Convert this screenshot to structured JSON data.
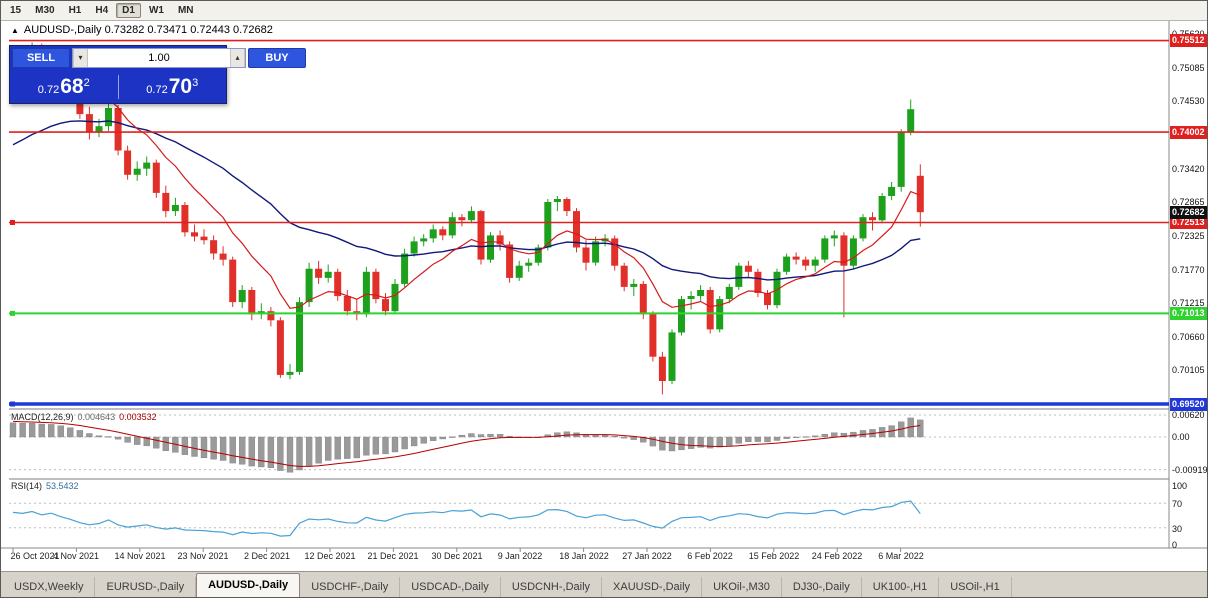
{
  "toolbar": {
    "periods": [
      {
        "label": "15"
      },
      {
        "label": "M30"
      },
      {
        "label": "H1"
      },
      {
        "label": "H4"
      },
      {
        "label": "D1",
        "active": true
      },
      {
        "label": "W1"
      },
      {
        "label": "MN"
      }
    ]
  },
  "chart_header": {
    "collapse_icon": "▲",
    "title": "AUDUSD-,Daily 0.73282 0.73471 0.72443 0.72682"
  },
  "trade_panel": {
    "sell_label": "SELL",
    "buy_label": "BUY",
    "volume": "1.00",
    "sell_price": {
      "prefix": "0.72",
      "big": "68",
      "sup": "2"
    },
    "buy_price": {
      "prefix": "0.72",
      "big": "70",
      "sup": "3"
    }
  },
  "chart_data": {
    "type": "candlestick",
    "symbol": "AUDUSD-",
    "timeframe": "Daily",
    "last_bar_ohlc": {
      "open": 0.73282,
      "high": 0.73471,
      "low": 0.72443,
      "close": 0.72682
    },
    "price_range_displayed": {
      "top": 0.7562,
      "bottom": 0.6952
    },
    "y_ticks": [
      "0.75620",
      "0.75085",
      "0.74530",
      "0.73975",
      "0.73420",
      "0.72865",
      "0.72325",
      "0.71770",
      "0.71215",
      "0.70660",
      "0.70105",
      "0.69520"
    ],
    "x_dates": [
      "26 Oct 2021",
      "4 Nov 2021",
      "14 Nov 2021",
      "23 Nov 2021",
      "2 Dec 2021",
      "12 Dec 2021",
      "21 Dec 2021",
      "30 Dec 2021",
      "9 Jan 2022",
      "18 Jan 2022",
      "27 Jan 2022",
      "6 Feb 2022",
      "15 Feb 2022",
      "24 Feb 2022",
      "6 Mar 2022"
    ],
    "colors": {
      "bull": "#1da11d",
      "bear": "#e12f2a"
    },
    "moving_averages": [
      {
        "period": 10,
        "method": "ema",
        "color": "#d61a1a"
      },
      {
        "period": 34,
        "method": "ema",
        "color": "#10197a"
      }
    ],
    "hlines": [
      {
        "price": 0.75512,
        "label": "0.75512",
        "color": "#e01f1f",
        "width": 1.6,
        "handle": false
      },
      {
        "price": 0.74002,
        "label": "0.74002",
        "color": "#e01f1f",
        "width": 1.6,
        "handle": false
      },
      {
        "price": 0.72513,
        "label": "0.72513",
        "color": "#e01f1f",
        "width": 1.6,
        "handle": true
      },
      {
        "price": 0.71013,
        "label": "0.71013",
        "color": "#2fd32f",
        "width": 2,
        "handle": true
      },
      {
        "price": 0.6952,
        "label": "0.69520",
        "color": "#2038d8",
        "width": 3.5,
        "handle": true
      }
    ],
    "current_price": {
      "value": 0.72682,
      "label": "0.72682",
      "badge_color": "#101010"
    },
    "indicators": [
      {
        "label": "MACD(12,26,9)",
        "value": "0.004643",
        "signal": "0.003532",
        "scale_labels": [
          "0.00620",
          "0.00",
          "-0.00919"
        ],
        "hist_color": "#9a9a9a",
        "signal_color": "#b30000",
        "params": {
          "fast": 12,
          "slow": 26,
          "signal": 9
        }
      },
      {
        "label": "RSI(14)",
        "value": "53.5432",
        "scale_labels": [
          "100",
          "70",
          "30",
          "0"
        ],
        "levels": [
          70,
          30
        ],
        "color": "#4aa0d8",
        "params": {
          "period": 14
        }
      }
    ],
    "candles": [
      [
        0.748,
        0.7512,
        0.7472,
        0.7502
      ],
      [
        0.7502,
        0.753,
        0.749,
        0.7521
      ],
      [
        0.7521,
        0.7548,
        0.7515,
        0.754
      ],
      [
        0.754,
        0.7546,
        0.75,
        0.7512
      ],
      [
        0.7512,
        0.7538,
        0.7505,
        0.7528
      ],
      [
        0.7528,
        0.7535,
        0.7488,
        0.7496
      ],
      [
        0.7496,
        0.751,
        0.7458,
        0.747
      ],
      [
        0.747,
        0.7478,
        0.7422,
        0.743
      ],
      [
        0.743,
        0.7442,
        0.7388,
        0.74
      ],
      [
        0.74,
        0.7422,
        0.7392,
        0.741
      ],
      [
        0.741,
        0.7448,
        0.7402,
        0.744
      ],
      [
        0.744,
        0.7445,
        0.7362,
        0.737
      ],
      [
        0.737,
        0.7378,
        0.7322,
        0.733
      ],
      [
        0.733,
        0.7352,
        0.732,
        0.734
      ],
      [
        0.734,
        0.736,
        0.7328,
        0.735
      ],
      [
        0.735,
        0.7355,
        0.7292,
        0.73
      ],
      [
        0.73,
        0.7312,
        0.726,
        0.727
      ],
      [
        0.727,
        0.7292,
        0.7262,
        0.728
      ],
      [
        0.728,
        0.7285,
        0.7228,
        0.7235
      ],
      [
        0.7235,
        0.7248,
        0.722,
        0.7228
      ],
      [
        0.7228,
        0.724,
        0.7215,
        0.7222
      ],
      [
        0.7222,
        0.723,
        0.719,
        0.72
      ],
      [
        0.72,
        0.7212,
        0.718,
        0.719
      ],
      [
        0.719,
        0.7195,
        0.7112,
        0.712
      ],
      [
        0.712,
        0.7148,
        0.711,
        0.714
      ],
      [
        0.714,
        0.7145,
        0.709,
        0.71
      ],
      [
        0.71,
        0.7118,
        0.7092,
        0.7105
      ],
      [
        0.7105,
        0.7112,
        0.708,
        0.709
      ],
      [
        0.709,
        0.7095,
        0.6995,
        0.7
      ],
      [
        0.7,
        0.7018,
        0.6993,
        0.7005
      ],
      [
        0.7005,
        0.7128,
        0.7,
        0.712
      ],
      [
        0.712,
        0.7185,
        0.7112,
        0.7175
      ],
      [
        0.7175,
        0.7188,
        0.715,
        0.716
      ],
      [
        0.716,
        0.7182,
        0.7152,
        0.717
      ],
      [
        0.717,
        0.7175,
        0.7122,
        0.713
      ],
      [
        0.713,
        0.714,
        0.7098,
        0.7105
      ],
      [
        0.7105,
        0.7125,
        0.709,
        0.71
      ],
      [
        0.71,
        0.7178,
        0.7095,
        0.717
      ],
      [
        0.717,
        0.7175,
        0.7118,
        0.7125
      ],
      [
        0.7125,
        0.7135,
        0.7098,
        0.7105
      ],
      [
        0.7105,
        0.7158,
        0.71,
        0.715
      ],
      [
        0.715,
        0.7208,
        0.7145,
        0.72
      ],
      [
        0.72,
        0.7228,
        0.7195,
        0.722
      ],
      [
        0.722,
        0.7232,
        0.7212,
        0.7225
      ],
      [
        0.7225,
        0.7248,
        0.7218,
        0.724
      ],
      [
        0.724,
        0.7245,
        0.7222,
        0.723
      ],
      [
        0.723,
        0.7268,
        0.7225,
        0.726
      ],
      [
        0.726,
        0.7265,
        0.7245,
        0.7255
      ],
      [
        0.7255,
        0.7278,
        0.725,
        0.727
      ],
      [
        0.727,
        0.7272,
        0.7182,
        0.719
      ],
      [
        0.719,
        0.7235,
        0.7185,
        0.723
      ],
      [
        0.723,
        0.7238,
        0.7205,
        0.7215
      ],
      [
        0.7215,
        0.722,
        0.7152,
        0.716
      ],
      [
        0.716,
        0.7188,
        0.7155,
        0.718
      ],
      [
        0.718,
        0.7192,
        0.717,
        0.7185
      ],
      [
        0.7185,
        0.7215,
        0.718,
        0.721
      ],
      [
        0.721,
        0.729,
        0.7205,
        0.7285
      ],
      [
        0.7285,
        0.7295,
        0.727,
        0.729
      ],
      [
        0.729,
        0.7293,
        0.7262,
        0.727
      ],
      [
        0.727,
        0.7275,
        0.7202,
        0.721
      ],
      [
        0.721,
        0.7222,
        0.7172,
        0.7185
      ],
      [
        0.7185,
        0.7228,
        0.718,
        0.722
      ],
      [
        0.722,
        0.7232,
        0.7212,
        0.7225
      ],
      [
        0.7225,
        0.723,
        0.7172,
        0.718
      ],
      [
        0.718,
        0.7185,
        0.7138,
        0.7145
      ],
      [
        0.7145,
        0.7158,
        0.713,
        0.715
      ],
      [
        0.715,
        0.7155,
        0.7092,
        0.71
      ],
      [
        0.71,
        0.7105,
        0.7022,
        0.703
      ],
      [
        0.703,
        0.7038,
        0.6968,
        0.699
      ],
      [
        0.699,
        0.7075,
        0.6985,
        0.707
      ],
      [
        0.707,
        0.713,
        0.7065,
        0.7125
      ],
      [
        0.7125,
        0.7138,
        0.7108,
        0.713
      ],
      [
        0.713,
        0.7148,
        0.7122,
        0.714
      ],
      [
        0.714,
        0.7145,
        0.7068,
        0.7075
      ],
      [
        0.7075,
        0.713,
        0.707,
        0.7125
      ],
      [
        0.7125,
        0.715,
        0.7118,
        0.7145
      ],
      [
        0.7145,
        0.7185,
        0.714,
        0.718
      ],
      [
        0.718,
        0.7188,
        0.7162,
        0.717
      ],
      [
        0.717,
        0.7175,
        0.7128,
        0.7135
      ],
      [
        0.7135,
        0.714,
        0.7108,
        0.7115
      ],
      [
        0.7115,
        0.7175,
        0.711,
        0.717
      ],
      [
        0.717,
        0.72,
        0.7165,
        0.7195
      ],
      [
        0.7195,
        0.7202,
        0.7182,
        0.719
      ],
      [
        0.719,
        0.7195,
        0.7172,
        0.718
      ],
      [
        0.718,
        0.7195,
        0.717,
        0.719
      ],
      [
        0.719,
        0.723,
        0.7185,
        0.7225
      ],
      [
        0.7225,
        0.7238,
        0.7212,
        0.723
      ],
      [
        0.723,
        0.7235,
        0.7095,
        0.718
      ],
      [
        0.718,
        0.723,
        0.7175,
        0.7225
      ],
      [
        0.7225,
        0.7265,
        0.722,
        0.726
      ],
      [
        0.726,
        0.7268,
        0.7238,
        0.7255
      ],
      [
        0.7255,
        0.73,
        0.725,
        0.7295
      ],
      [
        0.7295,
        0.7318,
        0.7288,
        0.731
      ],
      [
        0.731,
        0.7405,
        0.7302,
        0.74
      ],
      [
        0.74,
        0.7454,
        0.7395,
        0.7438
      ],
      [
        0.73282,
        0.73471,
        0.72443,
        0.72682
      ]
    ]
  },
  "tabs": {
    "active_index": 2,
    "items": [
      "USDX,Weekly",
      "EURUSD-,Daily",
      "AUDUSD-,Daily",
      "USDCHF-,Daily",
      "USDCAD-,Daily",
      "USDCNH-,Daily",
      "XAUUSD-,Daily",
      "UKOil-,M30",
      "DJ30-,Daily",
      "UK100-,H1",
      "USOil-,H1"
    ]
  }
}
